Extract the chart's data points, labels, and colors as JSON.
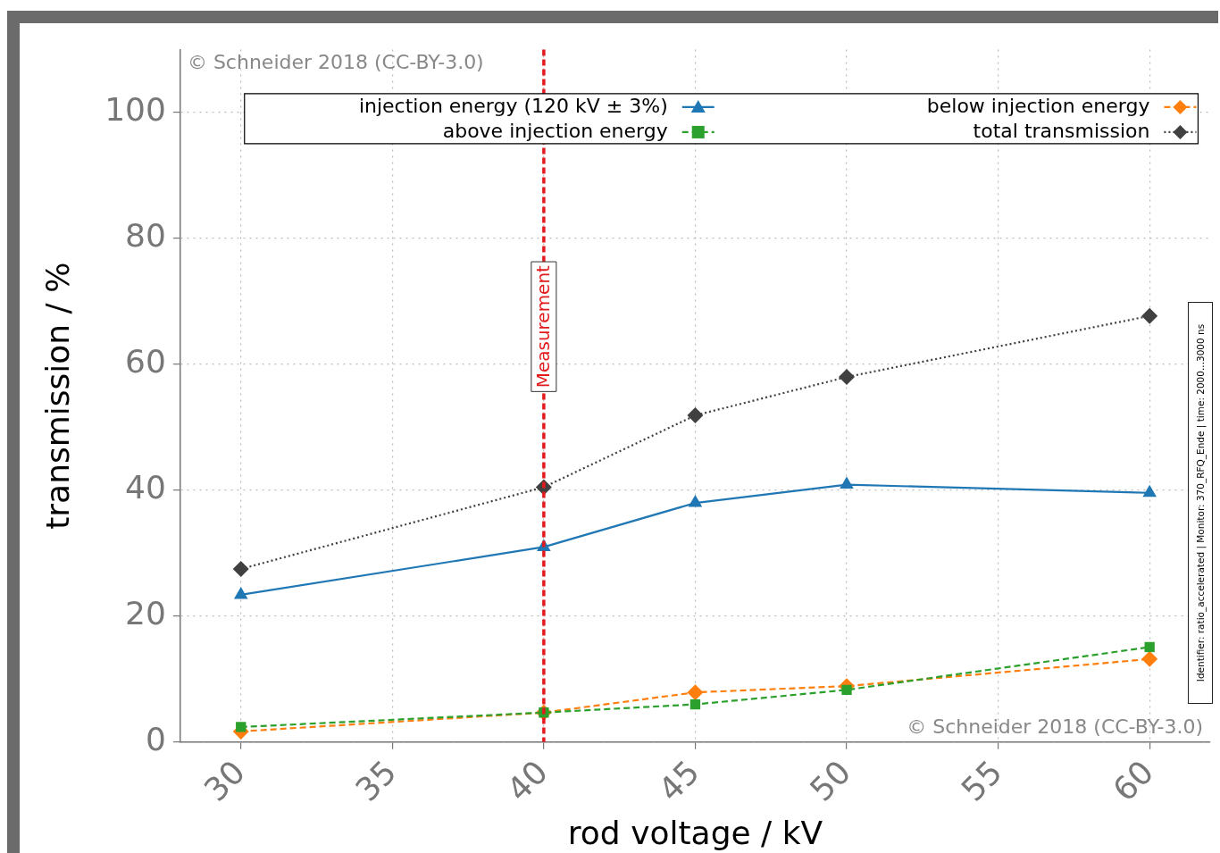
{
  "chart_data": {
    "type": "line",
    "xlabel": "rod voltage / kV",
    "ylabel": "transmission / %",
    "x": [
      30,
      40,
      45,
      50,
      60
    ],
    "xlim": [
      28,
      62
    ],
    "xticks": [
      30,
      35,
      40,
      45,
      50,
      55,
      60
    ],
    "ylim": [
      0,
      110
    ],
    "yticks": [
      0,
      20,
      40,
      60,
      80,
      100
    ],
    "grid": true,
    "legend": "top",
    "series": [
      {
        "name": "injection energy (120 kV ± 3%)",
        "color": "#1f77b4",
        "marker": "triangle",
        "line_style": "solid",
        "values": [
          23.4,
          31.0,
          38.0,
          40.9,
          39.6
        ]
      },
      {
        "name": "below injection energy",
        "color": "#ff7f0e",
        "marker": "diamond",
        "line_style": "dashed",
        "values": [
          1.7,
          4.7,
          7.9,
          8.9,
          13.2
        ]
      },
      {
        "name": "above injection energy",
        "color": "#2ca02c",
        "marker": "square",
        "line_style": "dashed",
        "values": [
          2.4,
          4.7,
          6.0,
          8.3,
          15.1
        ]
      },
      {
        "name": "total transmission",
        "color": "#404040",
        "marker": "diamond",
        "line_style": "dotted",
        "values": [
          27.5,
          40.5,
          51.9,
          58.0,
          67.7
        ]
      }
    ],
    "ref_lines": [
      {
        "axis": "x",
        "value": 40,
        "label": "Measurement",
        "color": "#e31a1c",
        "line_style": "dashed"
      }
    ],
    "annotations": [
      "© Schneider 2018 (CC-BY-3.0)",
      "© Schneider 2018 (CC-BY-3.0)",
      "Identifier: ratio_accelerated | Monitor: 370_RFQ_Ende | time: 2000...3000 ns"
    ]
  }
}
